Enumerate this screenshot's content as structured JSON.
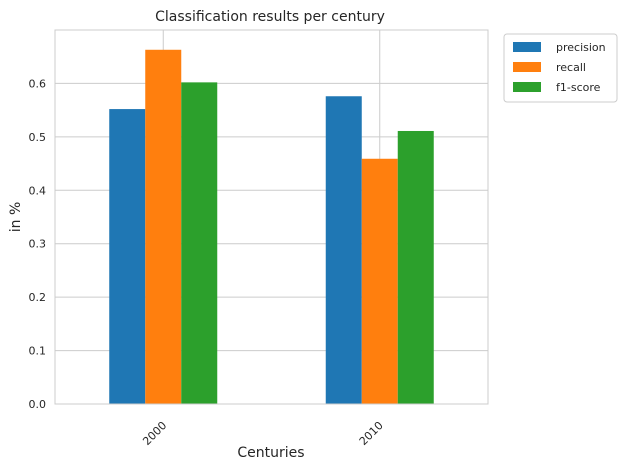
{
  "chart_data": {
    "type": "bar",
    "title": "Classification results per century",
    "xlabel": "Centuries",
    "ylabel": "in %",
    "categories": [
      "2000",
      "2010"
    ],
    "series": [
      {
        "name": "precision",
        "color": "#1f77b4",
        "values": [
          0.552,
          0.576
        ]
      },
      {
        "name": "recall",
        "color": "#ff7f0e",
        "values": [
          0.663,
          0.459
        ]
      },
      {
        "name": "f1-score",
        "color": "#2ca02c",
        "values": [
          0.602,
          0.511
        ]
      }
    ],
    "ylim": [
      0,
      0.7
    ],
    "yticks": [
      "0.0",
      "0.1",
      "0.2",
      "0.3",
      "0.4",
      "0.5",
      "0.6"
    ],
    "grid": true,
    "legend_position": "outside-top-right"
  }
}
